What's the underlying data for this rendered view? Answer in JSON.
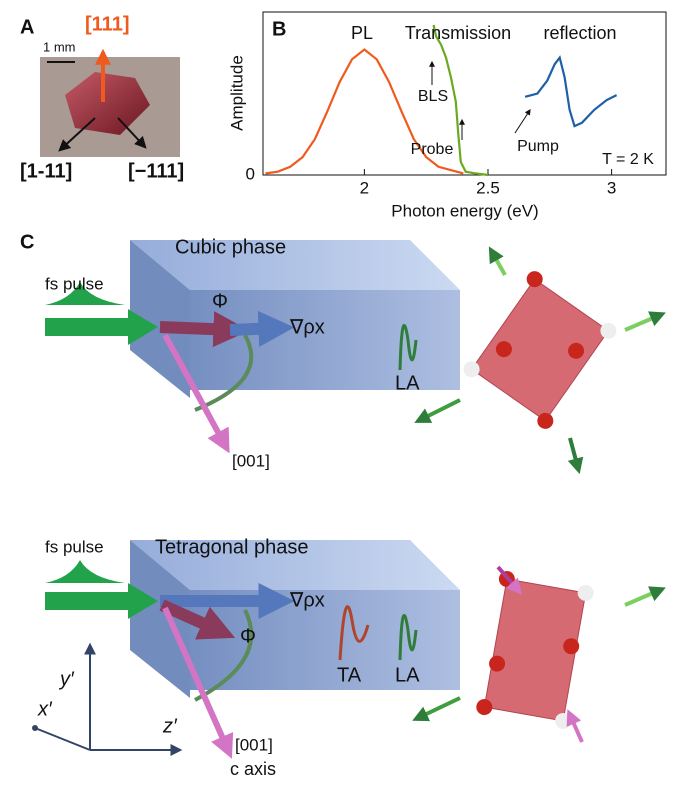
{
  "panel_a": {
    "label": "A",
    "direction_up": "[111]",
    "scale": "1 mm",
    "direction_left": "[1-11]",
    "direction_right": "[−111]"
  },
  "chart_data": {
    "type": "line",
    "panel_label": "B",
    "xlabel": "Photon energy (eV)",
    "ylabel": "Amplitude",
    "xlim": [
      1.59,
      3.22
    ],
    "xticks": [
      2,
      2.5,
      3
    ],
    "ylim": [
      0,
      1
    ],
    "yticks": [
      0
    ],
    "annotations": [
      "PL",
      "Transmission",
      "reflection",
      "BLS",
      "Probe",
      "Pump",
      "T = 2 K"
    ],
    "series": [
      {
        "name": "PL",
        "color": "#f05a1e",
        "x": [
          1.6,
          1.65,
          1.7,
          1.75,
          1.8,
          1.85,
          1.9,
          1.95,
          2.0,
          2.05,
          2.1,
          2.15,
          2.2,
          2.25,
          2.3,
          2.4
        ],
        "values": [
          0.01,
          0.02,
          0.05,
          0.11,
          0.22,
          0.39,
          0.57,
          0.71,
          0.77,
          0.71,
          0.57,
          0.39,
          0.22,
          0.11,
          0.05,
          0.01
        ]
      },
      {
        "name": "Transmission",
        "color": "#6aaa1e",
        "x": [
          2.28,
          2.29,
          2.31,
          2.33,
          2.35,
          2.37,
          2.38,
          2.39,
          2.41,
          2.45,
          2.5
        ],
        "values": [
          0.92,
          0.85,
          0.8,
          0.72,
          0.6,
          0.45,
          0.25,
          0.08,
          0.02,
          0.01,
          0
        ]
      },
      {
        "name": "reflection",
        "color": "#1f5fa8",
        "x": [
          2.65,
          2.7,
          2.74,
          2.77,
          2.79,
          2.81,
          2.83,
          2.85,
          2.88,
          2.93,
          2.98,
          3.02
        ],
        "values": [
          0.48,
          0.5,
          0.58,
          0.68,
          0.72,
          0.6,
          0.4,
          0.3,
          0.32,
          0.4,
          0.46,
          0.49
        ]
      }
    ]
  },
  "panel_c": {
    "label": "C",
    "cubic": {
      "title": "Cubic phase",
      "pump": "fs pulse",
      "phi": "Φ",
      "gradient": "∇ρx",
      "mode_la": "LA",
      "axis": "[001]"
    },
    "tetragonal": {
      "title": "Tetragonal phase",
      "pump": "fs pulse",
      "gradient": "∇ρx",
      "phi": "Φ",
      "mode_ta": "TA",
      "mode_la": "LA",
      "axis": "[001]",
      "axis_note": "c axis"
    },
    "frame": {
      "y": "y′",
      "x": "x′",
      "z": "z′"
    }
  }
}
